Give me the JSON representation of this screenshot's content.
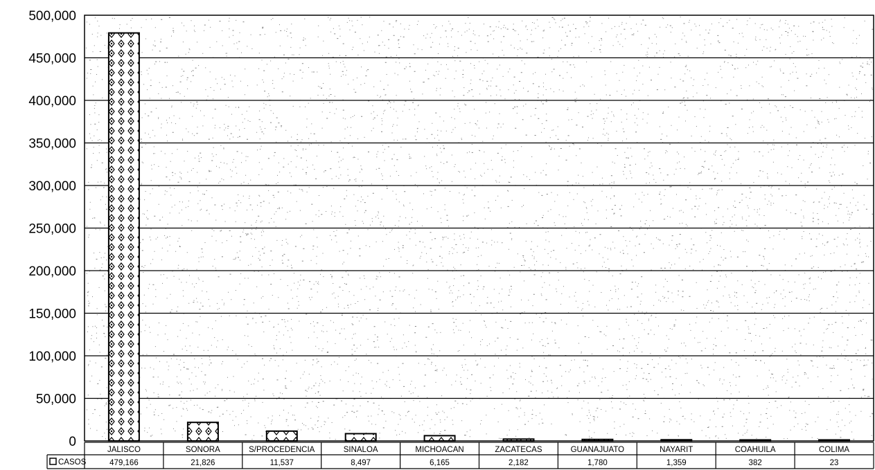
{
  "chart_data": {
    "type": "bar",
    "categories": [
      "JALISCO",
      "SONORA",
      "S/PROCEDENCIA",
      "SINALOA",
      "MICHOACAN",
      "ZACATECAS",
      "GUANAJUATO",
      "NAYARIT",
      "COAHUILA",
      "COLIMA"
    ],
    "series": [
      {
        "name": "CASOS",
        "values": [
          479166,
          21826,
          11537,
          8497,
          6165,
          2182,
          1780,
          1359,
          382,
          23
        ]
      }
    ],
    "value_labels": [
      "479,166",
      "21,826",
      "11,537",
      "8,497",
      "6,165",
      "2,182",
      "1,780",
      "1,359",
      "382",
      "23"
    ],
    "ylim": [
      0,
      500000
    ],
    "yticks": [
      0,
      50000,
      100000,
      150000,
      200000,
      250000,
      300000,
      350000,
      400000,
      450000,
      500000
    ],
    "ytick_labels": [
      "0",
      "50,000",
      "100,000",
      "150,000",
      "200,000",
      "250,000",
      "300,000",
      "350,000",
      "400,000",
      "450,000",
      "500,000"
    ],
    "grid": true,
    "legend_position": "bottom-left data table",
    "colors": {
      "bar_fill": "#ffffff",
      "bar_stroke": "#000000",
      "grid": "#000000",
      "speckle": "#555555"
    }
  }
}
